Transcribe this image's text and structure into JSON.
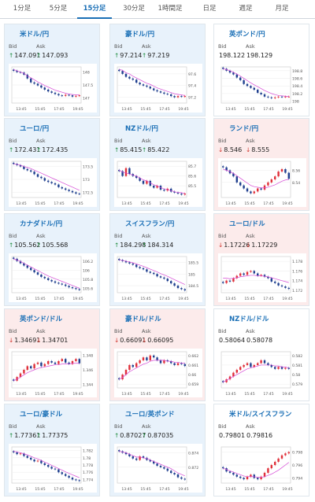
{
  "tabs": [
    {
      "label": "1分足",
      "active": false
    },
    {
      "label": "5分足",
      "active": false
    },
    {
      "label": "15分足",
      "active": true
    },
    {
      "label": "30分足",
      "active": false
    },
    {
      "label": "1時間足",
      "active": false
    },
    {
      "label": "日足",
      "active": false
    },
    {
      "label": "週足",
      "active": false
    },
    {
      "label": "月足",
      "active": false
    }
  ],
  "bid_label": "Bid",
  "ask_label": "Ask",
  "cards": [
    {
      "pair": "米ドル/円",
      "flags": [
        "us",
        "jp"
      ],
      "dir": "up",
      "bid": "147.091",
      "ask": "147.093",
      "bid_trend": "up",
      "ask_trend": "up",
      "bg": "up",
      "x_ticks": [
        "13:45",
        "15:45",
        "17:45",
        "19:45"
      ],
      "y_ticks": [
        "148",
        "147.5",
        "147"
      ],
      "ylim": [
        146.8,
        148.2
      ],
      "close": [
        148.05,
        148.0,
        147.98,
        147.9,
        147.75,
        147.6,
        147.55,
        147.48,
        147.4,
        147.32,
        147.25,
        147.2,
        147.15,
        147.1,
        147.08,
        147.12,
        147.1,
        147.05,
        147.08,
        147.1
      ],
      "ma": [
        148.1,
        148.05,
        148.0,
        147.95,
        147.85,
        147.78,
        147.7,
        147.62,
        147.55,
        147.48,
        147.42,
        147.36,
        147.3,
        147.26,
        147.22,
        147.18,
        147.15,
        147.13,
        147.12,
        147.11
      ]
    },
    {
      "pair": "豪ドル/円",
      "flags": [
        "au",
        "jp"
      ],
      "dir": "up",
      "bid": "97.214",
      "ask": "97.219",
      "bid_trend": "up",
      "ask_trend": "up",
      "bg": "up",
      "x_ticks": [
        "13:45",
        "15:45",
        "17:45",
        "19:45"
      ],
      "y_ticks": [
        "97.6",
        "97.4",
        "97.2"
      ],
      "ylim": [
        97.1,
        97.72
      ],
      "close": [
        97.65,
        97.6,
        97.55,
        97.52,
        97.5,
        97.45,
        97.42,
        97.4,
        97.38,
        97.35,
        97.32,
        97.3,
        97.28,
        97.26,
        97.25,
        97.22,
        97.2,
        97.22,
        97.21,
        97.22
      ],
      "ma": [
        97.68,
        97.66,
        97.62,
        97.6,
        97.56,
        97.53,
        97.5,
        97.47,
        97.44,
        97.42,
        97.39,
        97.36,
        97.34,
        97.32,
        97.3,
        97.28,
        97.26,
        97.25,
        97.24,
        97.23
      ]
    },
    {
      "pair": "英ポンド/円",
      "flags": [
        "gb",
        "jp"
      ],
      "dir": "flat",
      "bid": "198.122",
      "ask": "198.129",
      "bid_trend": "none",
      "ask_trend": "none",
      "bg": "flat",
      "x_ticks": [
        "13:45",
        "15:45",
        "17:45",
        "19:45"
      ],
      "y_ticks": [
        "198.8",
        "198.6",
        "198.4",
        "198.2",
        "198"
      ],
      "ylim": [
        197.95,
        198.9
      ],
      "close": [
        198.85,
        198.8,
        198.75,
        198.7,
        198.62,
        198.55,
        198.45,
        198.4,
        198.35,
        198.3,
        198.22,
        198.18,
        198.12,
        198.1,
        198.08,
        198.1,
        198.12,
        198.11,
        198.12,
        198.12
      ],
      "ma": [
        198.85,
        198.83,
        198.8,
        198.76,
        198.71,
        198.66,
        198.6,
        198.54,
        198.48,
        198.43,
        198.38,
        198.33,
        198.28,
        198.24,
        198.2,
        198.17,
        198.15,
        198.14,
        198.13,
        198.12
      ]
    },
    {
      "pair": "ユーロ/円",
      "flags": [
        "eu",
        "jp"
      ],
      "dir": "up",
      "bid": "172.431",
      "ask": "172.435",
      "bid_trend": "up",
      "ask_trend": "up",
      "bg": "up",
      "x_ticks": [
        "13:45",
        "15:45",
        "17:45",
        "19:45"
      ],
      "y_ticks": [
        "173.5",
        "173",
        "172.5"
      ],
      "ylim": [
        172.3,
        173.7
      ],
      "close": [
        173.6,
        173.55,
        173.5,
        173.4,
        173.35,
        173.3,
        173.2,
        173.1,
        173.05,
        172.95,
        172.9,
        172.85,
        172.8,
        172.7,
        172.65,
        172.6,
        172.55,
        172.5,
        172.45,
        172.43
      ],
      "ma": [
        173.6,
        173.58,
        173.55,
        173.5,
        173.46,
        173.42,
        173.36,
        173.3,
        173.24,
        173.18,
        173.12,
        173.06,
        173.0,
        172.94,
        172.88,
        172.82,
        172.76,
        172.7,
        172.64,
        172.58
      ]
    },
    {
      "pair": "NZドル/円",
      "flags": [
        "nz",
        "jp"
      ],
      "dir": "up",
      "bid": "85.415",
      "ask": "85.422",
      "bid_trend": "up",
      "ask_trend": "up",
      "bg": "up",
      "x_ticks": [
        "13:45",
        "15:45",
        "17:45",
        "19:45"
      ],
      "y_ticks": [
        "85.7",
        "85.6",
        "85.5"
      ],
      "ylim": [
        85.38,
        85.75
      ],
      "close": [
        85.65,
        85.6,
        85.68,
        85.62,
        85.6,
        85.58,
        85.55,
        85.52,
        85.55,
        85.5,
        85.48,
        85.5,
        85.46,
        85.45,
        85.47,
        85.44,
        85.43,
        85.42,
        85.41,
        85.42
      ],
      "ma": [
        85.66,
        85.64,
        85.63,
        85.62,
        85.61,
        85.6,
        85.58,
        85.56,
        85.55,
        85.53,
        85.51,
        85.5,
        85.48,
        85.47,
        85.46,
        85.45,
        85.44,
        85.43,
        85.43,
        85.42
      ]
    },
    {
      "pair": "ランド/円",
      "flags": [
        "za",
        "jp"
      ],
      "dir": "down",
      "bid": "8.546",
      "ask": "8.555",
      "bid_trend": "down",
      "ask_trend": "down",
      "bg": "down",
      "x_ticks": [
        "13:45",
        "15:45",
        "17:45",
        "19:45"
      ],
      "y_ticks": [
        "8.56",
        "8.54"
      ],
      "ylim": [
        8.515,
        8.575
      ],
      "close": [
        8.565,
        8.56,
        8.555,
        8.55,
        8.54,
        8.535,
        8.53,
        8.525,
        8.522,
        8.525,
        8.53,
        8.528,
        8.535,
        8.54,
        8.545,
        8.55,
        8.558,
        8.562,
        8.556,
        8.546
      ],
      "ma": [
        8.562,
        8.56,
        8.558,
        8.555,
        8.551,
        8.547,
        8.543,
        8.539,
        8.535,
        8.533,
        8.532,
        8.531,
        8.531,
        8.532,
        8.534,
        8.536,
        8.539,
        8.542,
        8.544,
        8.545
      ]
    },
    {
      "pair": "カナダドル/円",
      "flags": [
        "ca",
        "jp"
      ],
      "dir": "up",
      "bid": "105.562",
      "ask": "105.568",
      "bid_trend": "up",
      "ask_trend": "up",
      "bg": "up",
      "x_ticks": [
        "13:45",
        "15:45",
        "17:45",
        "19:45"
      ],
      "y_ticks": [
        "106.2",
        "106",
        "105.8",
        "105.6"
      ],
      "ylim": [
        105.5,
        106.3
      ],
      "close": [
        106.25,
        106.2,
        106.15,
        106.1,
        106.05,
        106.0,
        105.95,
        105.9,
        105.85,
        105.82,
        105.78,
        105.75,
        105.72,
        105.7,
        105.68,
        105.65,
        105.62,
        105.6,
        105.58,
        105.56
      ],
      "ma": [
        106.25,
        106.22,
        106.19,
        106.15,
        106.11,
        106.07,
        106.03,
        105.99,
        105.95,
        105.91,
        105.87,
        105.84,
        105.81,
        105.78,
        105.75,
        105.72,
        105.69,
        105.66,
        105.63,
        105.6
      ]
    },
    {
      "pair": "スイスフラン/円",
      "flags": [
        "ch",
        "jp"
      ],
      "dir": "up",
      "bid": "184.298",
      "ask": "184.314",
      "bid_trend": "up",
      "ask_trend": "up",
      "bg": "up",
      "x_ticks": [
        "13:45",
        "15:45",
        "17:45",
        "19:45"
      ],
      "y_ticks": [
        "185.5",
        "185",
        "184.5"
      ],
      "ylim": [
        184.2,
        185.75
      ],
      "close": [
        185.6,
        185.55,
        185.5,
        185.45,
        185.4,
        185.3,
        185.25,
        185.2,
        185.1,
        185.05,
        185.0,
        184.9,
        184.85,
        184.8,
        184.7,
        184.6,
        184.5,
        184.4,
        184.35,
        184.3
      ],
      "ma": [
        185.6,
        185.58,
        185.55,
        185.52,
        185.48,
        185.43,
        185.38,
        185.33,
        185.27,
        185.21,
        185.15,
        185.09,
        185.02,
        184.96,
        184.9,
        184.83,
        184.76,
        184.69,
        184.62,
        184.55
      ]
    },
    {
      "pair": "ユーロ/ドル",
      "flags": [
        "eu",
        "us"
      ],
      "dir": "down",
      "bid": "1.17226",
      "ask": "1.17229",
      "bid_trend": "down",
      "ask_trend": "down",
      "bg": "down",
      "x_ticks": [
        "13:45",
        "15:45",
        "17:45",
        "19:45"
      ],
      "y_ticks": [
        "1.178",
        "1.176",
        "1.174",
        "1.172"
      ],
      "ylim": [
        1.1715,
        1.179
      ],
      "close": [
        1.1735,
        1.174,
        1.1738,
        1.1745,
        1.175,
        1.1755,
        1.1752,
        1.1758,
        1.176,
        1.1755,
        1.175,
        1.1752,
        1.1748,
        1.1745,
        1.1738,
        1.1735,
        1.173,
        1.1728,
        1.1725,
        1.1723
      ],
      "ma": [
        1.1745,
        1.1745,
        1.1744,
        1.1745,
        1.1746,
        1.1748,
        1.1749,
        1.175,
        1.1751,
        1.1751,
        1.175,
        1.175,
        1.1749,
        1.1748,
        1.1746,
        1.1744,
        1.1742,
        1.174,
        1.1738,
        1.1736
      ]
    },
    {
      "pair": "英ポンド/ドル",
      "flags": [
        "gb",
        "us"
      ],
      "dir": "down",
      "bid": "1.34691",
      "ask": "1.34701",
      "bid_trend": "down",
      "ask_trend": "down",
      "bg": "down",
      "x_ticks": [
        "13:45",
        "15:45",
        "17:45",
        "19:45"
      ],
      "y_ticks": [
        "1.348",
        "1.346",
        "1.344"
      ],
      "ylim": [
        1.3435,
        1.3485
      ],
      "close": [
        1.3445,
        1.345,
        1.3455,
        1.346,
        1.3465,
        1.3462,
        1.3468,
        1.347,
        1.3465,
        1.3468,
        1.3472,
        1.347,
        1.3468,
        1.3472,
        1.3475,
        1.347,
        1.3468,
        1.3472,
        1.3475,
        1.3469
      ],
      "ma": [
        1.3445,
        1.3447,
        1.345,
        1.3453,
        1.3456,
        1.3458,
        1.346,
        1.3462,
        1.3463,
        1.3464,
        1.3465,
        1.3466,
        1.3467,
        1.3467,
        1.3468,
        1.3468,
        1.3468,
        1.3469,
        1.3469,
        1.3469
      ]
    },
    {
      "pair": "豪ドル/ドル",
      "flags": [
        "au",
        "us"
      ],
      "dir": "down",
      "bid": "0.66091",
      "ask": "0.66095",
      "bid_trend": "down",
      "ask_trend": "down",
      "bg": "down",
      "x_ticks": [
        "13:45",
        "15:45",
        "17:45",
        "19:45"
      ],
      "y_ticks": [
        "0.662",
        "0.661",
        "0.66",
        "0.659"
      ],
      "ylim": [
        0.6586,
        0.6624
      ],
      "close": [
        0.6595,
        0.66,
        0.6605,
        0.661,
        0.6608,
        0.6612,
        0.6615,
        0.6618,
        0.6615,
        0.662,
        0.6618,
        0.6615,
        0.6612,
        0.6615,
        0.6614,
        0.6612,
        0.661,
        0.6612,
        0.6611,
        0.6609
      ],
      "ma": [
        0.6595,
        0.6597,
        0.66,
        0.6603,
        0.6605,
        0.6607,
        0.6609,
        0.6611,
        0.6612,
        0.6614,
        0.6615,
        0.6615,
        0.6615,
        0.6615,
        0.6614,
        0.6614,
        0.6613,
        0.6613,
        0.6612,
        0.6612
      ]
    },
    {
      "pair": "NZドル/ドル",
      "flags": [
        "nz",
        "us"
      ],
      "dir": "flat",
      "bid": "0.58064",
      "ask": "0.58078",
      "bid_trend": "none",
      "ask_trend": "none",
      "bg": "flat",
      "x_ticks": [
        "13:45",
        "15:45",
        "17:45",
        "19:45"
      ],
      "y_ticks": [
        "0.582",
        "0.581",
        "0.58",
        "0.579"
      ],
      "ylim": [
        0.5786,
        0.5824
      ],
      "close": [
        0.5792,
        0.5795,
        0.5798,
        0.5802,
        0.5805,
        0.5808,
        0.581,
        0.5812,
        0.5808,
        0.581,
        0.5812,
        0.5815,
        0.5812,
        0.581,
        0.5808,
        0.5806,
        0.5808,
        0.5806,
        0.5807,
        0.5806
      ],
      "ma": [
        0.5792,
        0.5794,
        0.5796,
        0.5798,
        0.58,
        0.5802,
        0.5804,
        0.5806,
        0.5807,
        0.5808,
        0.5809,
        0.581,
        0.581,
        0.581,
        0.581,
        0.5809,
        0.5809,
        0.5808,
        0.5808,
        0.5807
      ]
    },
    {
      "pair": "ユーロ/豪ドル",
      "flags": [
        "eu",
        "au"
      ],
      "dir": "up",
      "bid": "1.77361",
      "ask": "1.77375",
      "bid_trend": "up",
      "ask_trend": "up",
      "bg": "up",
      "x_ticks": [
        "13:45",
        "15:45",
        "17:45",
        "19:45"
      ],
      "y_ticks": [
        "1.782",
        "1.78",
        "1.778",
        "1.776",
        "1.774"
      ],
      "ylim": [
        1.773,
        1.783
      ],
      "close": [
        1.7815,
        1.781,
        1.7812,
        1.7805,
        1.78,
        1.7795,
        1.779,
        1.7792,
        1.7785,
        1.778,
        1.7775,
        1.777,
        1.7768,
        1.776,
        1.7755,
        1.775,
        1.7745,
        1.774,
        1.7738,
        1.7736
      ],
      "ma": [
        1.7818,
        1.7816,
        1.7814,
        1.7811,
        1.7808,
        1.7804,
        1.78,
        1.7797,
        1.7793,
        1.7788,
        1.7784,
        1.7779,
        1.7775,
        1.777,
        1.7766,
        1.7761,
        1.7757,
        1.7753,
        1.7749,
        1.7745
      ]
    },
    {
      "pair": "ユーロ/英ポンド",
      "flags": [
        "eu",
        "gb"
      ],
      "dir": "up",
      "bid": "0.87027",
      "ask": "0.87035",
      "bid_trend": "up",
      "ask_trend": "up",
      "bg": "up",
      "x_ticks": [
        "13:45",
        "15:45",
        "17:45",
        "19:45"
      ],
      "y_ticks": [
        "0.874",
        "0.872"
      ],
      "ylim": [
        0.8698,
        0.8748
      ],
      "close": [
        0.8742,
        0.874,
        0.8738,
        0.8735,
        0.8732,
        0.873,
        0.8735,
        0.8733,
        0.873,
        0.8728,
        0.8725,
        0.8722,
        0.872,
        0.8718,
        0.8715,
        0.8712,
        0.871,
        0.8706,
        0.8704,
        0.8703
      ],
      "ma": [
        0.8742,
        0.8741,
        0.874,
        0.8738,
        0.8736,
        0.8734,
        0.8734,
        0.8733,
        0.8732,
        0.873,
        0.8728,
        0.8726,
        0.8724,
        0.8722,
        0.872,
        0.8718,
        0.8715,
        0.8712,
        0.871,
        0.8708
      ]
    },
    {
      "pair": "米ドル/スイスフラン",
      "flags": [
        "us",
        "ch"
      ],
      "dir": "flat",
      "bid": "0.79801",
      "ask": "0.79816",
      "bid_trend": "none",
      "ask_trend": "none",
      "bg": "flat",
      "x_ticks": [
        "13:45",
        "15:45",
        "17:45",
        "19:45"
      ],
      "y_ticks": [
        "0.798",
        "0.796",
        "0.794"
      ],
      "ylim": [
        0.7932,
        0.7988
      ],
      "close": [
        0.7955,
        0.795,
        0.7948,
        0.7945,
        0.7942,
        0.794,
        0.7938,
        0.7942,
        0.7945,
        0.794,
        0.7938,
        0.7942,
        0.7948,
        0.7955,
        0.796,
        0.7965,
        0.797,
        0.7975,
        0.7978,
        0.798
      ],
      "ma": [
        0.7955,
        0.7953,
        0.7951,
        0.7949,
        0.7947,
        0.7945,
        0.7943,
        0.7942,
        0.7942,
        0.7942,
        0.7941,
        0.7941,
        0.7942,
        0.7944,
        0.7946,
        0.7949,
        0.7952,
        0.7956,
        0.796,
        0.7964
      ]
    }
  ]
}
